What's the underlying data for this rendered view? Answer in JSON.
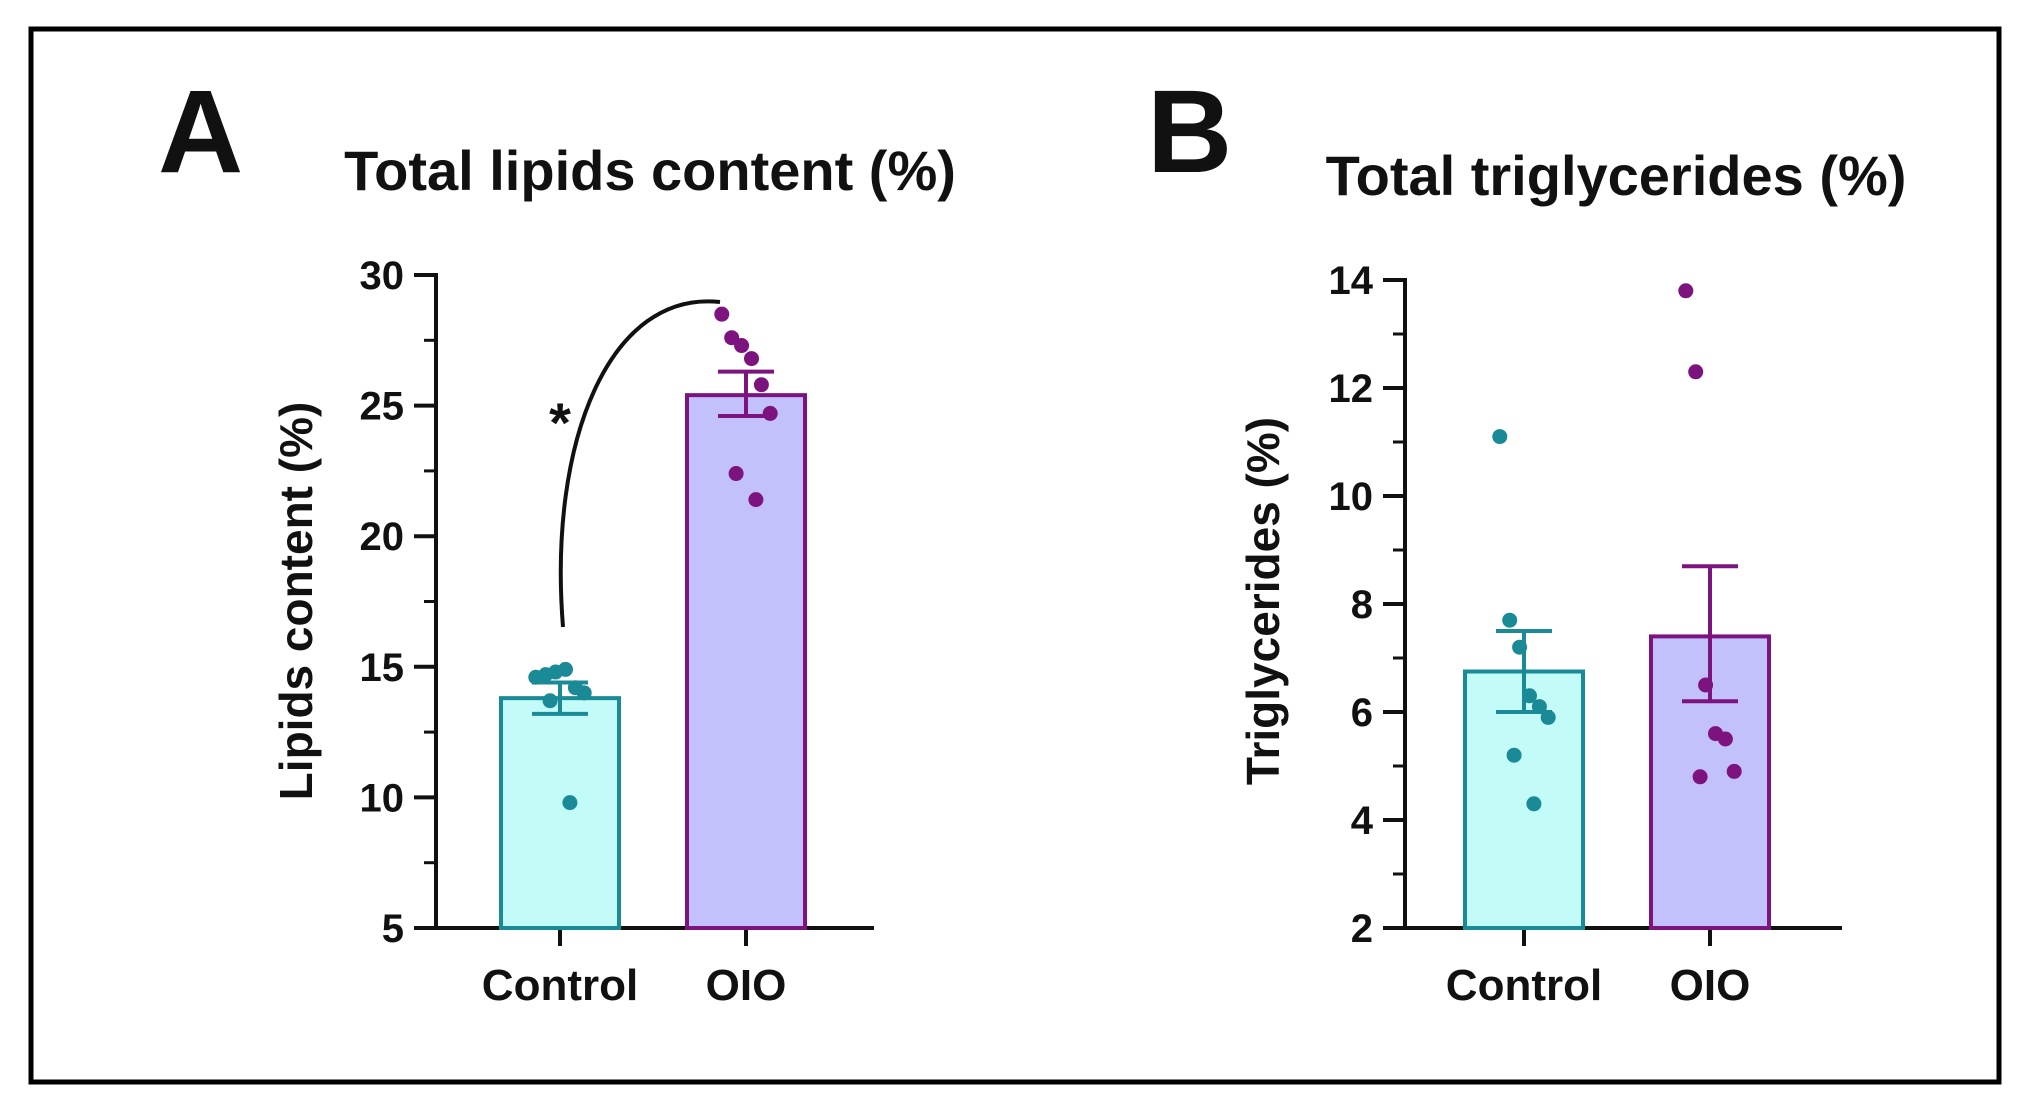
{
  "chart_data": [
    {
      "type": "bar",
      "panel_label": "A",
      "title": "Total lipids content (%)",
      "xlabel": "",
      "ylabel": "Lipids content (%)",
      "ylim": [
        5,
        30
      ],
      "yticks": [
        5,
        10,
        15,
        20,
        25,
        30
      ],
      "yticks_minor": [
        7.5,
        12.5,
        17.5,
        22.5,
        27.5
      ],
      "categories": [
        "Control",
        "OIO"
      ],
      "series": [
        {
          "name": "Control",
          "mean": 13.8,
          "sem_low": 13.2,
          "sem_high": 14.4,
          "color": "#1a8a96",
          "fill": "#c2fbf7",
          "points": [
            14.6,
            14.7,
            14.8,
            14.9,
            14.2,
            14.0,
            13.7,
            9.8
          ]
        },
        {
          "name": "OIO",
          "mean": 25.4,
          "sem_low": 24.6,
          "sem_high": 26.3,
          "color": "#7c137e",
          "fill": "#c3c1fb",
          "points": [
            28.5,
            27.6,
            27.3,
            26.8,
            25.8,
            24.7,
            22.4,
            21.4
          ]
        }
      ],
      "annotation": {
        "text": "*",
        "between": [
          "Control",
          "OIO"
        ]
      }
    },
    {
      "type": "bar",
      "panel_label": "B",
      "title": "Total triglycerides (%)",
      "xlabel": "",
      "ylabel": "Triglycerides (%)",
      "ylim": [
        2,
        14
      ],
      "yticks": [
        2,
        4,
        6,
        8,
        10,
        12,
        14
      ],
      "yticks_minor": [
        3,
        5,
        7,
        9,
        11,
        13
      ],
      "categories": [
        "Control",
        "OIO"
      ],
      "series": [
        {
          "name": "Control",
          "mean": 6.75,
          "sem_low": 6.0,
          "sem_high": 7.5,
          "color": "#1a8a96",
          "fill": "#c2fbf7",
          "points": [
            11.1,
            7.7,
            7.2,
            6.3,
            6.1,
            5.9,
            5.2,
            4.3
          ]
        },
        {
          "name": "OIO",
          "mean": 7.4,
          "sem_low": 6.2,
          "sem_high": 8.7,
          "color": "#7c137e",
          "fill": "#c3c1fb",
          "points": [
            13.8,
            12.3,
            6.5,
            5.6,
            5.5,
            4.9,
            4.8
          ]
        }
      ]
    }
  ]
}
